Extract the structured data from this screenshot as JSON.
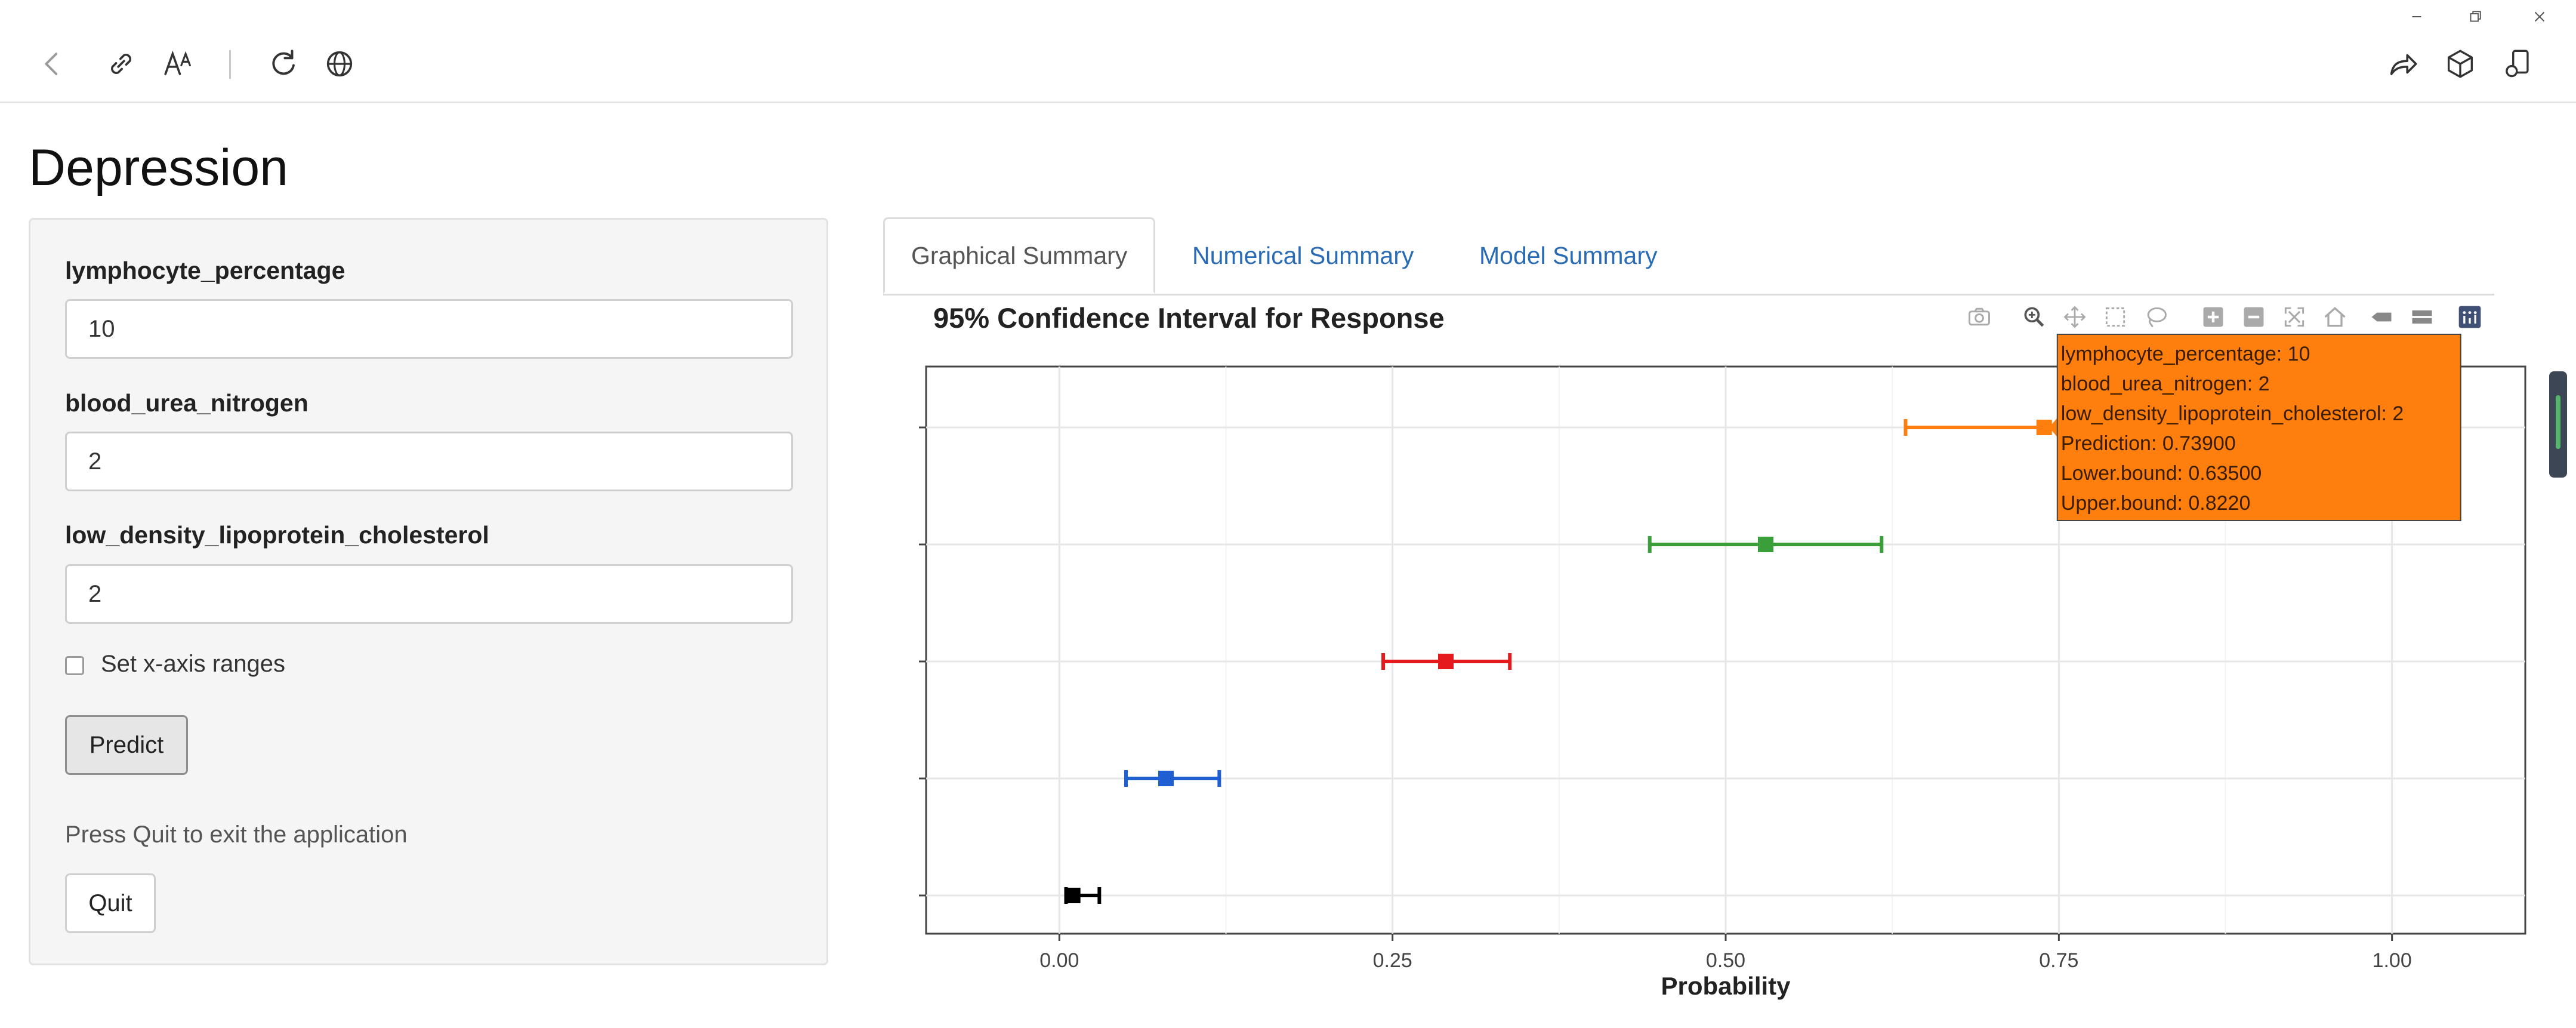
{
  "browser": {
    "nav_icons": [
      "back-icon",
      "link-icon",
      "read-aloud-icon",
      "refresh-icon",
      "globe-icon"
    ],
    "right_icons": [
      "share-icon",
      "cube-icon",
      "extensions-icon"
    ],
    "window_icons": [
      "minimize-icon",
      "restore-icon",
      "close-icon"
    ]
  },
  "app": {
    "title": "Depression"
  },
  "sidebar": {
    "fields": [
      {
        "label": "lymphocyte_percentage",
        "value": "10"
      },
      {
        "label": "blood_urea_nitrogen",
        "value": "2"
      },
      {
        "label": "low_density_lipoprotein_cholesterol",
        "value": "2"
      }
    ],
    "checkbox_label": "Set x-axis ranges",
    "checkbox_checked": false,
    "predict_label": "Predict",
    "help_text": "Press Quit to exit the application",
    "quit_label": "Quit"
  },
  "tabs": [
    {
      "label": "Graphical Summary",
      "active": true
    },
    {
      "label": "Numerical Summary",
      "active": false
    },
    {
      "label": "Model Summary",
      "active": false
    }
  ],
  "modebar_icons": [
    "camera-icon",
    "zoom-icon",
    "pan-icon",
    "box-select-icon",
    "lasso-icon",
    "zoom-in-icon",
    "zoom-out-icon",
    "autoscale-icon",
    "reset-axes-icon",
    "spike-lines-icon",
    "compare-hover-icon",
    "plotly-logo-icon"
  ],
  "chart_data": {
    "type": "scatter",
    "title": "95% Confidence Interval for Response",
    "xlabel": "Probability",
    "ylabel": "",
    "xlim": [
      -0.1,
      1.1
    ],
    "x_ticks": [
      "0.00",
      "0.25",
      "0.50",
      "0.75",
      "1.00"
    ],
    "x_tick_values": [
      0,
      0.25,
      0.5,
      0.75,
      1.0
    ],
    "y_tick_count": 5,
    "grid": true,
    "series": [
      {
        "prediction": 0.01,
        "lower": 0.005,
        "upper": 0.03,
        "color": "#000000"
      },
      {
        "prediction": 0.08,
        "lower": 0.05,
        "upper": 0.12,
        "color": "#1f5fd1"
      },
      {
        "prediction": 0.29,
        "lower": 0.243,
        "upper": 0.338,
        "color": "#e41a1c"
      },
      {
        "prediction": 0.53,
        "lower": 0.443,
        "upper": 0.617,
        "color": "#3a9e3a"
      },
      {
        "prediction": 0.739,
        "lower": 0.635,
        "upper": 0.822,
        "color": "#ff7f0e"
      }
    ],
    "tooltip": {
      "series_index": 4,
      "color": "#ff7f0e",
      "lines": [
        "lymphocyte_percentage: 10",
        "blood_urea_nitrogen: 2",
        "low_density_lipoprotein_cholesterol: 2",
        "Prediction: 0.73900",
        "Lower.bound: 0.63500",
        "Upper.bound: 0.8220"
      ]
    }
  }
}
